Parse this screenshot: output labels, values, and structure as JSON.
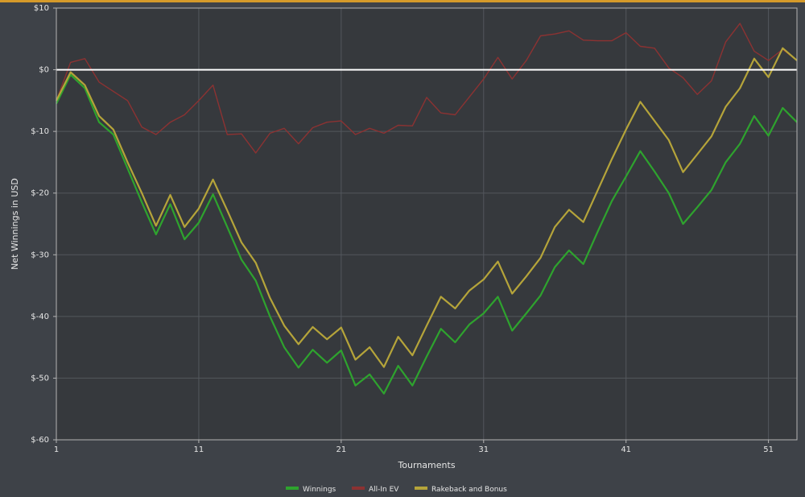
{
  "chart_data": {
    "type": "line",
    "xlabel": "Tournaments",
    "ylabel": "Net Winnings in USD",
    "xlim": [
      1,
      53
    ],
    "ylim": [
      -60,
      10
    ],
    "x_ticks": [
      1,
      11,
      21,
      31,
      41,
      51
    ],
    "y_ticks": [
      {
        "value": 10,
        "label": "$10"
      },
      {
        "value": 0,
        "label": "$0"
      },
      {
        "value": -10,
        "label": "$-10"
      },
      {
        "value": -20,
        "label": "$-20"
      },
      {
        "value": -30,
        "label": "$-30"
      },
      {
        "value": -40,
        "label": "$-40"
      },
      {
        "value": -50,
        "label": "$-50"
      },
      {
        "value": -60,
        "label": "$-60"
      }
    ],
    "grid": true,
    "zero_line": true,
    "legend_position": "bottom",
    "series": [
      {
        "name": "Winnings",
        "color": "#2ea32e",
        "values": [
          -5.5,
          -0.8,
          -3.0,
          -8.5,
          -10.5,
          -16.0,
          -21.5,
          -26.7,
          -21.8,
          -27.5,
          -24.8,
          -20.2,
          -25.5,
          -30.8,
          -34.2,
          -40.0,
          -45.0,
          -48.3,
          -45.4,
          -47.5,
          -45.5,
          -51.2,
          -49.4,
          -52.5,
          -48.0,
          -51.2,
          -46.5,
          -42.0,
          -44.2,
          -41.3,
          -39.5,
          -36.8,
          -42.3,
          -39.5,
          -36.6,
          -32.0,
          -29.3,
          -31.5,
          -26.3,
          -21.3,
          -17.3,
          -13.2,
          -16.5,
          -20.0,
          -25.0,
          -22.3,
          -19.5,
          -15.0,
          -12.0,
          -7.5,
          -10.7,
          -6.2,
          -8.5
        ]
      },
      {
        "name": "All-In EV",
        "color": "#8c3232",
        "values": [
          -5.0,
          1.2,
          1.8,
          -2.0,
          -3.5,
          -5.0,
          -9.3,
          -10.5,
          -8.5,
          -7.3,
          -5.0,
          -2.5,
          -10.5,
          -10.4,
          -13.5,
          -10.3,
          -9.5,
          -12.0,
          -9.4,
          -8.5,
          -8.3,
          -10.5,
          -9.5,
          -10.3,
          -9.0,
          -9.1,
          -4.5,
          -7.0,
          -7.3,
          -4.4,
          -1.5,
          2.0,
          -1.5,
          1.5,
          5.5,
          5.8,
          6.3,
          4.8,
          4.7,
          4.7,
          6.0,
          3.8,
          3.5,
          0.3,
          -1.3,
          -4.0,
          -1.8,
          4.5,
          7.5,
          3.0,
          1.5,
          3.3,
          1.5
        ]
      },
      {
        "name": "Rakeback and Bonus",
        "color": "#b5a43a",
        "values": [
          -5.0,
          -0.4,
          -2.5,
          -7.5,
          -9.7,
          -15.0,
          -20.0,
          -25.3,
          -20.3,
          -25.5,
          -22.5,
          -17.8,
          -22.8,
          -28.0,
          -31.3,
          -37.0,
          -41.5,
          -44.5,
          -41.7,
          -43.7,
          -41.8,
          -47.0,
          -45.0,
          -48.2,
          -43.3,
          -46.3,
          -41.5,
          -36.8,
          -38.7,
          -35.8,
          -34.0,
          -31.1,
          -36.3,
          -33.5,
          -30.5,
          -25.5,
          -22.7,
          -24.7,
          -19.6,
          -14.5,
          -9.7,
          -5.2,
          -8.3,
          -11.4,
          -16.6,
          -13.7,
          -10.8,
          -6.0,
          -3.0,
          1.8,
          -1.2,
          3.5,
          1.5
        ]
      }
    ]
  }
}
